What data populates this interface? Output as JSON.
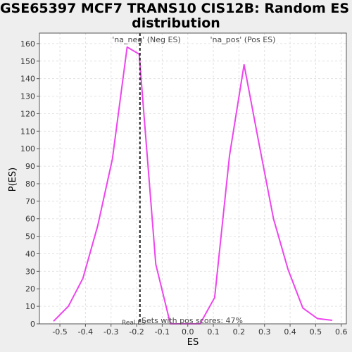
{
  "chart_data": {
    "type": "line",
    "title_lines": [
      "GSE65397 MCF7 TRANS10 CIS12B: Random ES",
      "distribution"
    ],
    "xlabel": "ES",
    "ylabel": "P(ES)",
    "xlim": [
      -0.58,
      0.62
    ],
    "ylim": [
      0,
      166
    ],
    "x_ticks": [
      -0.5,
      -0.4,
      -0.3,
      -0.2,
      -0.1,
      0.0,
      0.1,
      0.2,
      0.3,
      0.4,
      0.5,
      0.6
    ],
    "x_tick_labels": [
      "-0.5",
      "-0.4",
      "-0.3",
      "-0.2",
      "-0.1",
      "0.0",
      "0.1",
      "0.2",
      "0.3",
      "0.4",
      "0.5",
      "0.6"
    ],
    "y_ticks": [
      0,
      10,
      20,
      30,
      40,
      50,
      60,
      70,
      80,
      90,
      100,
      110,
      120,
      130,
      140,
      150,
      160
    ],
    "y_tick_labels": [
      "0",
      "10",
      "20",
      "30",
      "40",
      "50",
      "60",
      "70",
      "80",
      "90",
      "100",
      "110",
      "120",
      "130",
      "140",
      "150",
      "160"
    ],
    "grid": true,
    "series": [
      {
        "color": "#ee44ee",
        "x": [
          -0.525,
          -0.467,
          -0.41,
          -0.352,
          -0.295,
          -0.237,
          -0.19,
          -0.125,
          -0.068,
          -0.01,
          0.048,
          0.105,
          0.163,
          0.22,
          0.277,
          0.335,
          0.392,
          0.45,
          0.507,
          0.565
        ],
        "y": [
          1.5,
          10,
          26,
          56,
          94,
          158,
          154,
          34,
          0,
          0,
          0,
          15,
          96,
          148,
          104,
          60,
          31,
          9,
          3,
          2
        ]
      }
    ],
    "real_es": -0.187,
    "annotations": {
      "neg_label": "'na_neg' (Neg ES)",
      "neg_color": "#4444cc",
      "pos_label": "'na_pos' (Pos ES)",
      "pos_color": "#dd4444",
      "real_label": "Real ES",
      "pos_score_text": "Sets with pos scores: 47%"
    }
  }
}
